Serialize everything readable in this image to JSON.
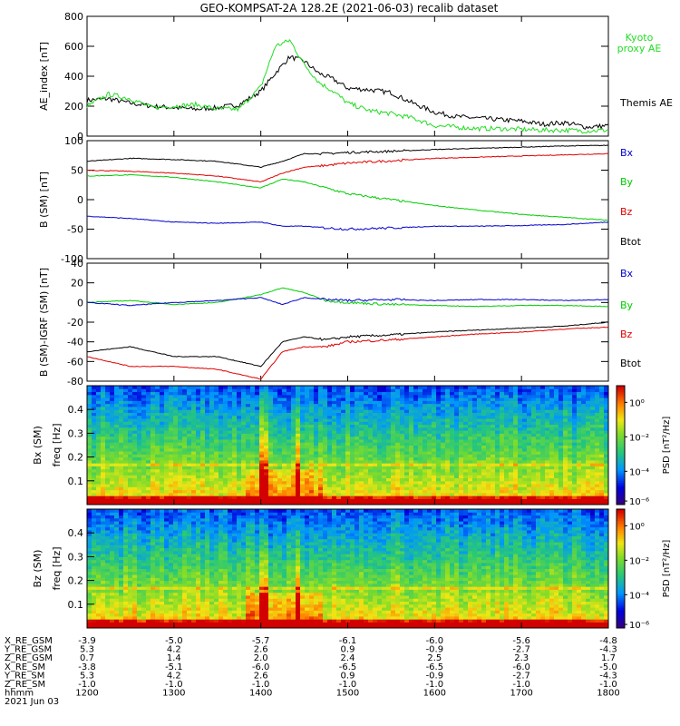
{
  "title": "GEO-KOMPSAT-2A 128.2E (2021-06-03) recalib dataset",
  "colors": {
    "black": "#000000",
    "red": "#e00000",
    "green": "#00cc00",
    "blue": "#0000cc",
    "lime": "#22dd22"
  },
  "chart_data": [
    {
      "type": "line",
      "ylabel": "AE_index [nT]",
      "ylim": [
        0,
        800
      ],
      "yticks": [
        "0",
        "200",
        "400",
        "600",
        "800"
      ],
      "x": [
        1200,
        1215,
        1230,
        1245,
        1300,
        1315,
        1330,
        1345,
        1400,
        1410,
        1420,
        1430,
        1440,
        1450,
        1500,
        1515,
        1530,
        1545,
        1600,
        1615,
        1630,
        1645,
        1700,
        1715,
        1730,
        1745,
        1800
      ],
      "series": [
        {
          "name": "Themis AE",
          "color": "black",
          "values": [
            240,
            250,
            220,
            200,
            190,
            180,
            190,
            210,
            300,
            420,
            530,
            500,
            420,
            380,
            320,
            310,
            290,
            220,
            160,
            130,
            120,
            110,
            100,
            80,
            90,
            60,
            70
          ]
        },
        {
          "name": "Kyoto proxy AE",
          "color": "lime",
          "values": [
            200,
            280,
            250,
            190,
            200,
            210,
            180,
            180,
            330,
            600,
            640,
            480,
            360,
            300,
            220,
            170,
            150,
            120,
            70,
            60,
            50,
            50,
            45,
            40,
            40,
            35,
            40
          ]
        }
      ],
      "legend": [
        "Kyoto proxy AE",
        "Themis AE"
      ]
    },
    {
      "type": "line",
      "ylabel": "B (SM) [nT]",
      "ylim": [
        -100,
        100
      ],
      "yticks": [
        "-100",
        "-50",
        "0",
        "50",
        "100"
      ],
      "x": [
        1200,
        1230,
        1300,
        1330,
        1400,
        1415,
        1430,
        1445,
        1500,
        1530,
        1600,
        1630,
        1700,
        1730,
        1800
      ],
      "series": [
        {
          "name": "Btot",
          "color": "black",
          "values": [
            65,
            70,
            68,
            65,
            55,
            65,
            78,
            78,
            80,
            82,
            85,
            87,
            89,
            91,
            92
          ]
        },
        {
          "name": "Bz",
          "color": "red",
          "values": [
            50,
            48,
            45,
            40,
            30,
            45,
            55,
            58,
            62,
            66,
            70,
            72,
            74,
            76,
            78
          ]
        },
        {
          "name": "By",
          "color": "green",
          "values": [
            40,
            42,
            38,
            30,
            20,
            35,
            30,
            20,
            10,
            0,
            -10,
            -18,
            -25,
            -30,
            -35
          ]
        },
        {
          "name": "Bx",
          "color": "blue",
          "values": [
            -28,
            -32,
            -38,
            -40,
            -38,
            -45,
            -45,
            -48,
            -50,
            -48,
            -45,
            -45,
            -44,
            -42,
            -38
          ]
        }
      ],
      "legend": [
        "Bx",
        "By",
        "Bz",
        "Btot"
      ]
    },
    {
      "type": "line",
      "ylabel": "B (SM)-IGRF (SM) [nT]",
      "ylim": [
        -80,
        40
      ],
      "yticks": [
        "-80",
        "-60",
        "-40",
        "-20",
        "0",
        "20",
        "40"
      ],
      "x": [
        1200,
        1230,
        1300,
        1330,
        1400,
        1415,
        1430,
        1445,
        1500,
        1530,
        1600,
        1630,
        1700,
        1730,
        1800
      ],
      "series": [
        {
          "name": "Btot",
          "color": "black",
          "values": [
            -50,
            -45,
            -55,
            -55,
            -65,
            -40,
            -35,
            -38,
            -35,
            -33,
            -30,
            -28,
            -26,
            -24,
            -20
          ]
        },
        {
          "name": "Bz",
          "color": "red",
          "values": [
            -55,
            -65,
            -65,
            -68,
            -78,
            -50,
            -45,
            -45,
            -40,
            -38,
            -35,
            -32,
            -30,
            -27,
            -25
          ]
        },
        {
          "name": "By",
          "color": "green",
          "values": [
            0,
            2,
            -2,
            0,
            8,
            15,
            10,
            2,
            0,
            -2,
            -3,
            -4,
            -3,
            -3,
            -4
          ]
        },
        {
          "name": "Bx",
          "color": "blue",
          "values": [
            0,
            -3,
            0,
            2,
            5,
            -2,
            5,
            3,
            2,
            3,
            2,
            3,
            3,
            2,
            3
          ]
        }
      ],
      "legend": [
        "Bx",
        "By",
        "Bz",
        "Btot"
      ]
    },
    {
      "type": "heatmap",
      "ylabel": "Bx (SM) freq [Hz]",
      "ylim": [
        0,
        0.5
      ],
      "yticks": [
        "0.1",
        "0.2",
        "0.3",
        "0.4"
      ],
      "colorbar_label": "PSD [nT²/Hz]",
      "colorbar_ticks": [
        "10⁰",
        "10⁻²",
        "10⁻⁴",
        "10⁻⁶"
      ],
      "color_scale": "log PSD, low=purple/blue, high=red"
    },
    {
      "type": "heatmap",
      "ylabel": "Bz (SM) freq [Hz]",
      "ylim": [
        0,
        0.5
      ],
      "yticks": [
        "0.1",
        "0.2",
        "0.3",
        "0.4"
      ],
      "colorbar_label": "PSD [nT²/Hz]",
      "colorbar_ticks": [
        "10⁰",
        "10⁻²",
        "10⁻⁴",
        "10⁻⁶"
      ],
      "color_scale": "log PSD, low=purple/blue, high=red"
    }
  ],
  "xaxis": {
    "rows": [
      {
        "label": "X_RE_GSM",
        "values": [
          "-3.9",
          "-5.0",
          "-5.7",
          "-6.1",
          "-6.0",
          "-5.6",
          "-4.8"
        ]
      },
      {
        "label": "Y_RE_GSM",
        "values": [
          "5.3",
          "4.2",
          "2.6",
          "0.9",
          "-0.9",
          "-2.7",
          "-4.3"
        ]
      },
      {
        "label": "Z_RE_GSM",
        "values": [
          "0.7",
          "1.4",
          "2.0",
          "2.4",
          "2.5",
          "2.3",
          "1.7"
        ]
      },
      {
        "label": "X_RE_SM",
        "values": [
          "-3.8",
          "-5.1",
          "-6.0",
          "-6.5",
          "-6.5",
          "-6.0",
          "-5.0"
        ]
      },
      {
        "label": "Y_RE_SM",
        "values": [
          "5.3",
          "4.2",
          "2.6",
          "0.9",
          "-0.9",
          "-2.7",
          "-4.3"
        ]
      },
      {
        "label": "Z_RE_SM",
        "values": [
          "-1.0",
          "-1.0",
          "-1.0",
          "-1.0",
          "-1.0",
          "-1.0",
          "-1.0"
        ]
      },
      {
        "label": "hhmm",
        "values": [
          "1200",
          "1300",
          "1400",
          "1500",
          "1600",
          "1700",
          "1800"
        ]
      }
    ],
    "date": "2021 Jun 03"
  }
}
